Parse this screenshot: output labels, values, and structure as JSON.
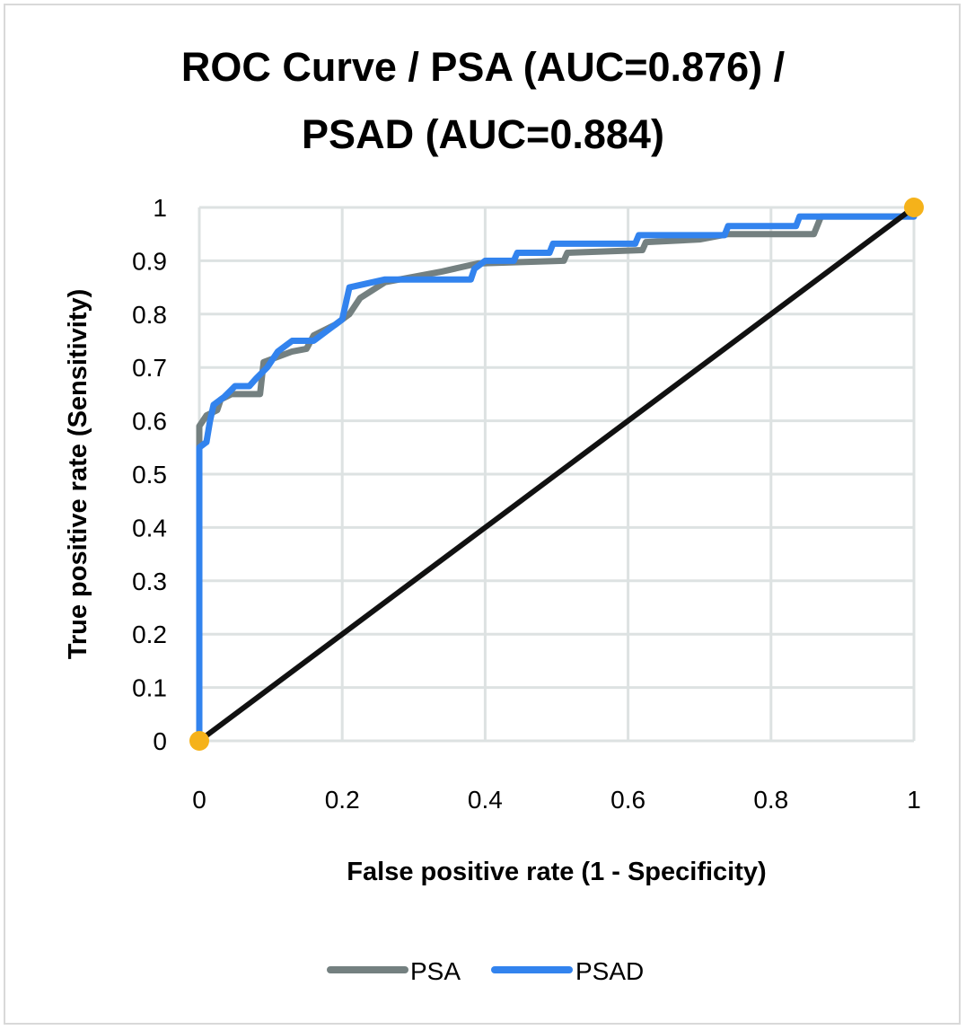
{
  "chart_data": {
    "type": "line",
    "title_lines": [
      "ROC Curve / PSA (AUC=0.876) /",
      "PSAD (AUC=0.884)"
    ],
    "xlabel": "False positive rate (1 - Specificity)",
    "ylabel": "True positive rate (Sensitivity)",
    "xlim": [
      0,
      1
    ],
    "ylim": [
      0,
      1
    ],
    "xticks": [
      "0",
      "0.2",
      "0.4",
      "0.6",
      "0.8",
      "1"
    ],
    "yticks": [
      "0",
      "0.1",
      "0.2",
      "0.3",
      "0.4",
      "0.5",
      "0.6",
      "0.7",
      "0.8",
      "0.9",
      "1"
    ],
    "grid": true,
    "legend_position": "bottom",
    "series": [
      {
        "name": "PSA",
        "color": "#748080",
        "points": [
          [
            0,
            0
          ],
          [
            0,
            0.59
          ],
          [
            0.01,
            0.61
          ],
          [
            0.025,
            0.62
          ],
          [
            0.03,
            0.64
          ],
          [
            0.045,
            0.65
          ],
          [
            0.085,
            0.65
          ],
          [
            0.09,
            0.71
          ],
          [
            0.13,
            0.73
          ],
          [
            0.15,
            0.735
          ],
          [
            0.16,
            0.76
          ],
          [
            0.19,
            0.78
          ],
          [
            0.21,
            0.8
          ],
          [
            0.225,
            0.83
          ],
          [
            0.26,
            0.86
          ],
          [
            0.34,
            0.88
          ],
          [
            0.39,
            0.895
          ],
          [
            0.51,
            0.9
          ],
          [
            0.515,
            0.915
          ],
          [
            0.62,
            0.92
          ],
          [
            0.625,
            0.935
          ],
          [
            0.7,
            0.94
          ],
          [
            0.74,
            0.95
          ],
          [
            0.86,
            0.95
          ],
          [
            0.87,
            0.983
          ],
          [
            1,
            0.983
          ],
          [
            1,
            1
          ]
        ]
      },
      {
        "name": "PSAD",
        "color": "#3283ee",
        "points": [
          [
            0,
            0
          ],
          [
            0,
            0.55
          ],
          [
            0.01,
            0.56
          ],
          [
            0.015,
            0.6
          ],
          [
            0.02,
            0.63
          ],
          [
            0.035,
            0.645
          ],
          [
            0.05,
            0.665
          ],
          [
            0.07,
            0.665
          ],
          [
            0.08,
            0.68
          ],
          [
            0.095,
            0.7
          ],
          [
            0.11,
            0.73
          ],
          [
            0.13,
            0.75
          ],
          [
            0.16,
            0.75
          ],
          [
            0.18,
            0.77
          ],
          [
            0.2,
            0.79
          ],
          [
            0.21,
            0.85
          ],
          [
            0.26,
            0.865
          ],
          [
            0.38,
            0.865
          ],
          [
            0.385,
            0.885
          ],
          [
            0.4,
            0.9
          ],
          [
            0.44,
            0.9
          ],
          [
            0.445,
            0.915
          ],
          [
            0.49,
            0.915
          ],
          [
            0.495,
            0.932
          ],
          [
            0.61,
            0.932
          ],
          [
            0.615,
            0.948
          ],
          [
            0.735,
            0.948
          ],
          [
            0.74,
            0.965
          ],
          [
            0.835,
            0.965
          ],
          [
            0.84,
            0.983
          ],
          [
            1,
            0.983
          ],
          [
            1,
            1
          ]
        ]
      }
    ],
    "reference_line": {
      "color": "#111111",
      "points": [
        [
          0,
          0
        ],
        [
          1,
          1
        ]
      ],
      "marker_color": "#f5b21a"
    }
  }
}
